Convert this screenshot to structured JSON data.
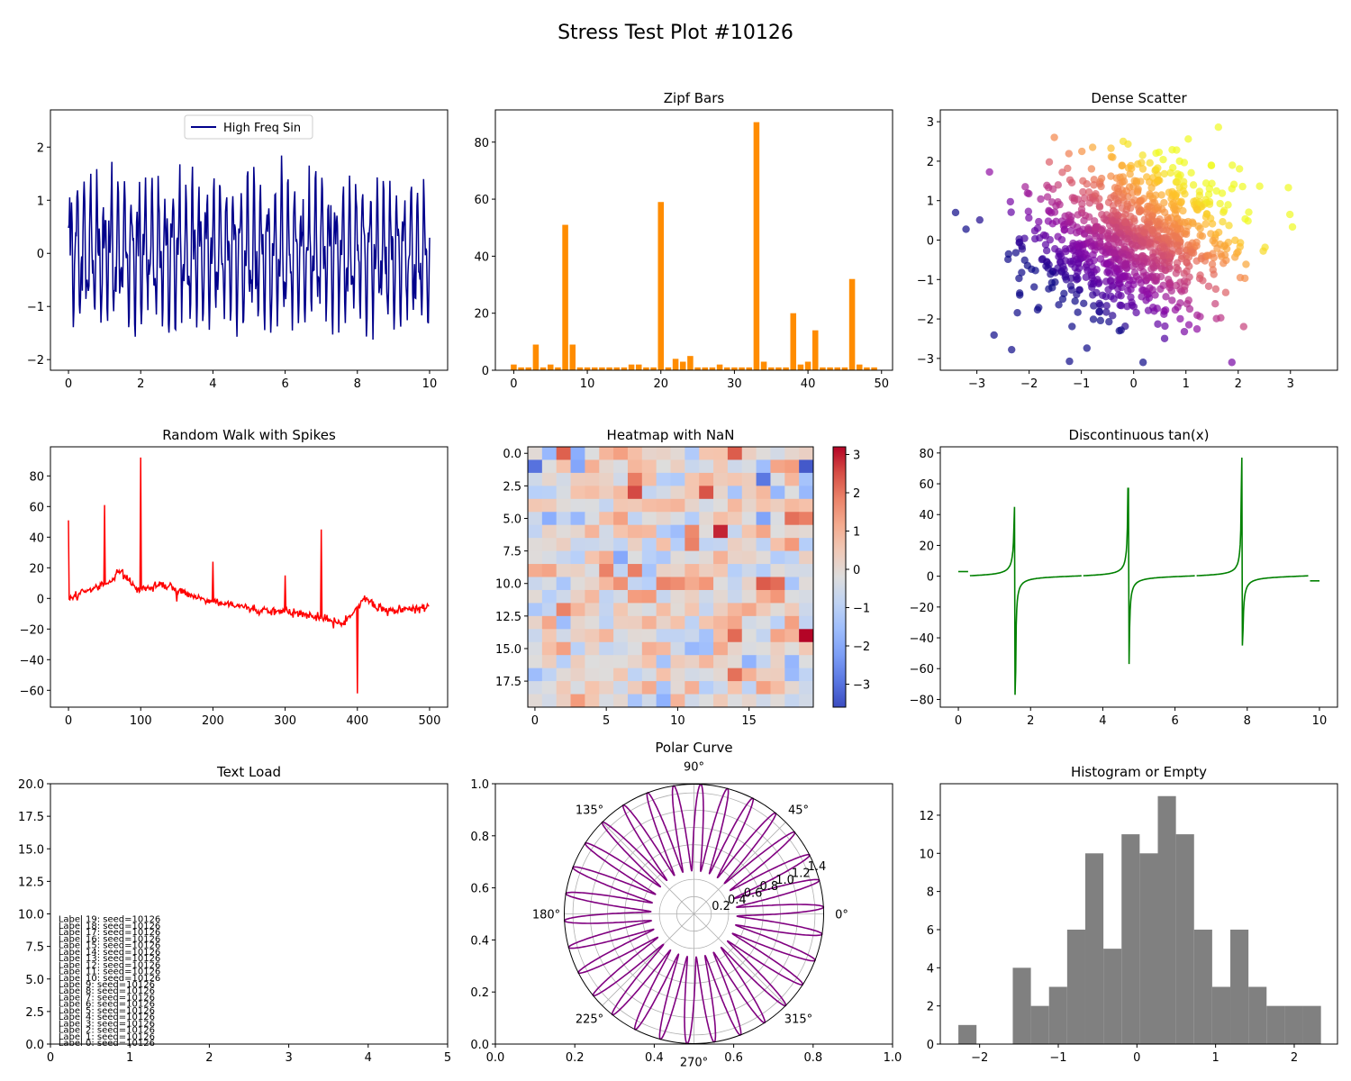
{
  "figure": {
    "title": "Stress Test Plot #10126"
  },
  "colors": {
    "sin": "#00008b",
    "bars": "#ff8c00",
    "walk": "#ff0000",
    "tan": "#008000",
    "polar": "#800080",
    "hist": "#808080",
    "axis": "#000000",
    "grid": "#b0b0b0"
  },
  "chart_data": [
    {
      "id": "sin",
      "type": "line",
      "title": "",
      "legend": {
        "entries": [
          "High Freq Sin"
        ],
        "placement": "upper center"
      },
      "xlim": [
        -0.5,
        10.5
      ],
      "ylim": [
        -2.2,
        2.7
      ],
      "xticks": [
        0,
        2,
        4,
        6,
        8,
        10
      ],
      "yticks": [
        -2,
        -1,
        0,
        1,
        2
      ],
      "series": [
        {
          "name": "High Freq Sin",
          "x": [
            0,
            10
          ],
          "approx_formula": "sin(2πf·x)+noise, range about -1.9..2.5"
        }
      ]
    },
    {
      "id": "zipf",
      "type": "bar",
      "title": "Zipf Bars",
      "xlim": [
        -2.5,
        51.5
      ],
      "ylim": [
        0,
        91.3
      ],
      "xticks": [
        0,
        10,
        20,
        30,
        40,
        50
      ],
      "yticks": [
        0,
        20,
        40,
        60,
        80
      ],
      "categories": [
        0,
        1,
        2,
        3,
        4,
        5,
        6,
        7,
        8,
        9,
        10,
        11,
        12,
        13,
        14,
        15,
        16,
        17,
        18,
        19,
        20,
        21,
        22,
        23,
        24,
        25,
        26,
        27,
        28,
        29,
        30,
        31,
        32,
        33,
        34,
        35,
        36,
        37,
        38,
        39,
        40,
        41,
        42,
        43,
        44,
        45,
        46,
        47,
        48,
        49
      ],
      "values": [
        2,
        1,
        1,
        9,
        1,
        2,
        1,
        51,
        9,
        1,
        1,
        1,
        1,
        1,
        1,
        1,
        2,
        2,
        1,
        1,
        59,
        1,
        4,
        3,
        5,
        1,
        1,
        1,
        2,
        1,
        1,
        1,
        1,
        87,
        3,
        1,
        1,
        1,
        20,
        2,
        3,
        14,
        1,
        1,
        1,
        1,
        32,
        2,
        1,
        1
      ]
    },
    {
      "id": "scatter",
      "type": "scatter",
      "title": "Dense Scatter",
      "xlim": [
        -3.7,
        3.9
      ],
      "ylim": [
        -3.3,
        3.3
      ],
      "xticks": [
        -3,
        -2,
        -1,
        0,
        1,
        2,
        3
      ],
      "yticks": [
        -3,
        -2,
        -1,
        0,
        1,
        2,
        3
      ],
      "n_points": 1000,
      "colormap": "plasma",
      "color_by": "x + y",
      "alpha": 0.7
    },
    {
      "id": "walk",
      "type": "line",
      "title": "Random Walk with Spikes",
      "xlim": [
        -25,
        525
      ],
      "ylim": [
        -71,
        99
      ],
      "xticks": [
        0,
        100,
        200,
        300,
        400,
        500
      ],
      "yticks": [
        -60,
        -40,
        -20,
        0,
        20,
        40,
        60,
        80
      ],
      "spikes": [
        {
          "x": 0,
          "y": 51
        },
        {
          "x": 50,
          "y": 61
        },
        {
          "x": 100,
          "y": 92
        },
        {
          "x": 150,
          "y": -2
        },
        {
          "x": 200,
          "y": 24
        },
        {
          "x": 300,
          "y": 15
        },
        {
          "x": 350,
          "y": 45
        },
        {
          "x": 400,
          "y": -62
        }
      ]
    },
    {
      "id": "heatmap",
      "type": "heatmap",
      "title": "Heatmap with NaN",
      "shape": [
        20,
        20
      ],
      "colormap": "coolwarm",
      "vmin": -3.6,
      "vmax": 3.2,
      "xticks": [
        0,
        5,
        10,
        15
      ],
      "yticks": [
        0.0,
        2.5,
        5.0,
        7.5,
        10.0,
        12.5,
        15.0,
        17.5
      ],
      "colorbar_ticks": [
        3,
        2,
        1,
        0,
        -1,
        -2,
        -3
      ],
      "notable_cells": [
        {
          "row": 1,
          "col": 0,
          "value": -3.0
        },
        {
          "row": 1,
          "col": 19,
          "value": -3.4
        },
        {
          "row": 6,
          "col": 13,
          "value": 2.9
        },
        {
          "row": 14,
          "col": 19,
          "value": 3.2
        },
        {
          "row": 10,
          "col": 16,
          "value": 2.4
        },
        {
          "row": 14,
          "col": 14,
          "value": 2.2
        }
      ]
    },
    {
      "id": "tan",
      "type": "line",
      "title": "Discontinuous tan(x)",
      "xlim": [
        -0.5,
        10.5
      ],
      "ylim": [
        -85,
        84
      ],
      "xticks": [
        0,
        2,
        4,
        6,
        8,
        10
      ],
      "yticks": [
        -80,
        -60,
        -40,
        -20,
        0,
        20,
        40,
        60,
        80
      ],
      "segments": [
        {
          "x0": 0.0,
          "x1": 0.27,
          "ymin": 3,
          "ymax": 37
        },
        {
          "x0": 0.32,
          "x1": 3.41,
          "ymin": -77,
          "ymax": 45
        },
        {
          "x0": 3.46,
          "x1": 6.55,
          "ymin": -57,
          "ymax": 57
        },
        {
          "x0": 6.6,
          "x1": 9.69,
          "ymin": -45,
          "ymax": 77
        },
        {
          "x0": 9.74,
          "x1": 10.0,
          "ymin": -37,
          "ymax": -3
        }
      ]
    },
    {
      "id": "text",
      "type": "scatter",
      "title": "Text Load",
      "xlim": [
        0,
        5
      ],
      "ylim": [
        0,
        20
      ],
      "xticks": [
        0,
        1,
        2,
        3,
        4,
        5
      ],
      "yticks": [
        0.0,
        2.5,
        5.0,
        7.5,
        10.0,
        12.5,
        15.0,
        17.5,
        20.0
      ],
      "labels": [
        "Label 0: seed=10126",
        "Label 1: seed=10126",
        "Label 2: seed=10126",
        "Label 3: seed=10126",
        "Label 4: seed=10126",
        "Label 5: seed=10126",
        "Label 6: seed=10126",
        "Label 7: seed=10126",
        "Label 8: seed=10126",
        "Label 9: seed=10126",
        "Label 10: seed=10126",
        "Label 11: seed=10126",
        "Label 12: seed=10126",
        "Label 13: seed=10126",
        "Label 14: seed=10126",
        "Label 15: seed=10126",
        "Label 16: seed=10126",
        "Label 17: seed=10126",
        "Label 18: seed=10126",
        "Label 19: seed=10126"
      ],
      "label_x": 0.1,
      "label_y_start": 0.0,
      "label_y_step": 0.5
    },
    {
      "id": "polar",
      "type": "line",
      "title": "Polar Curve",
      "outer_axes": {
        "xlim": [
          0,
          1
        ],
        "ylim": [
          0,
          1
        ],
        "xticks": [
          0.0,
          0.2,
          0.4,
          0.6,
          0.8,
          1.0
        ],
        "yticks": [
          0.0,
          0.2,
          0.4,
          0.6,
          0.8,
          1.0
        ]
      },
      "angle_ticks": [
        0,
        45,
        90,
        135,
        180,
        225,
        270,
        315
      ],
      "angle_labels": [
        "0°",
        "45°",
        "90°",
        "135°",
        "180°",
        "225°",
        "270°",
        "315°"
      ],
      "radial_ticks": [
        "0.2",
        "0.4",
        "0.6",
        "0.8",
        "1.0",
        "1.2",
        "1.4"
      ],
      "rmax": 1.5,
      "approx_formula": "r = 1 + 0.5·sin(Nθ), about 30 petals"
    },
    {
      "id": "hist",
      "type": "bar",
      "title": "Histogram or Empty",
      "xlim": [
        -2.5,
        2.55
      ],
      "ylim": [
        0,
        13.65
      ],
      "xticks": [
        -2,
        -1,
        0,
        1,
        2
      ],
      "yticks": [
        0,
        2,
        4,
        6,
        8,
        10,
        12
      ],
      "bin_start": -2.27,
      "bin_width": 0.2305,
      "values": [
        1,
        0,
        0,
        4,
        2,
        3,
        6,
        10,
        5,
        11,
        10,
        13,
        11,
        6,
        3,
        6,
        3,
        2,
        2,
        2
      ]
    }
  ]
}
